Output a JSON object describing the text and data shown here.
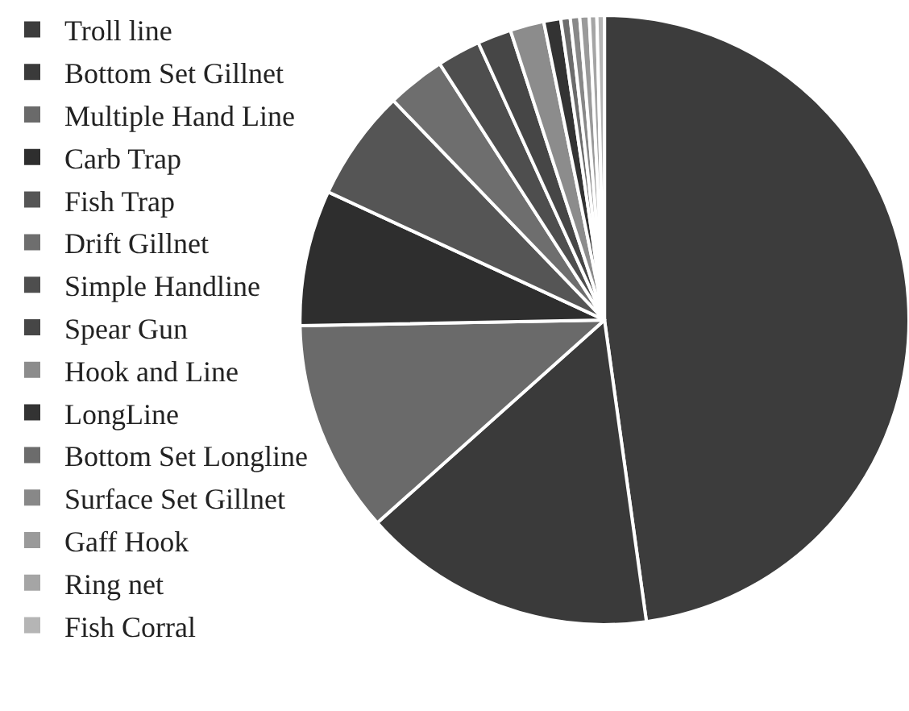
{
  "chart_data": {
    "type": "pie",
    "legend": "left",
    "categories": [
      "Troll line",
      "Bottom Set Gillnet",
      "Multiple Hand Line",
      "Carb Trap",
      "Fish Trap",
      "Drift Gillnet",
      "Simple Handline",
      "Spear Gun",
      "Hook and Line",
      "LongLine",
      "Bottom Set Longline",
      "Surface Set Gillnet",
      "Gaff Hook",
      "Ring net",
      "Fish Corral"
    ],
    "values": [
      47.8,
      15.6,
      11.3,
      7.2,
      5.9,
      3.1,
      2.3,
      1.8,
      1.8,
      0.9,
      0.5,
      0.5,
      0.5,
      0.4,
      0.4
    ],
    "colors": [
      "#3c3c3c",
      "#3a3a3a",
      "#6a6a6a",
      "#2e2e2e",
      "#555555",
      "#6e6e6e",
      "#4e4e4e",
      "#464646",
      "#8c8c8c",
      "#333333",
      "#6c6c6c",
      "#888888",
      "#9a9a9a",
      "#a5a5a5",
      "#b5b5b5"
    ]
  }
}
